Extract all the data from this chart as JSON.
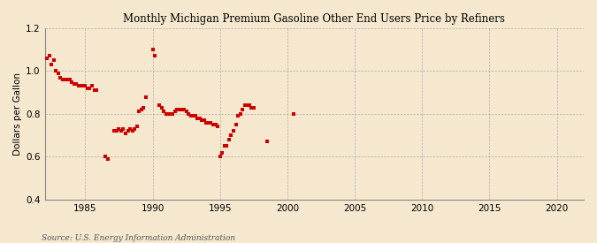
{
  "title": "Monthly Michigan Premium Gasoline Other End Users Price by Refiners",
  "ylabel": "Dollars per Gallon",
  "source": "Source: U.S. Energy Information Administration",
  "background_color": "#f5e8ce",
  "marker_color": "#cc0000",
  "xlim": [
    1982,
    2022
  ],
  "ylim": [
    0.4,
    1.2
  ],
  "xticks": [
    1985,
    1990,
    1995,
    2000,
    2005,
    2010,
    2015,
    2020
  ],
  "yticks": [
    0.4,
    0.6,
    0.8,
    1.0,
    1.2
  ],
  "data_x": [
    1982.17,
    1982.33,
    1982.5,
    1982.67,
    1982.83,
    1983.0,
    1983.17,
    1983.33,
    1983.5,
    1983.67,
    1983.83,
    1984.0,
    1984.17,
    1984.33,
    1984.5,
    1984.67,
    1984.83,
    1985.0,
    1985.17,
    1985.33,
    1985.5,
    1985.67,
    1985.83,
    1986.5,
    1986.67,
    1987.17,
    1987.33,
    1987.5,
    1987.67,
    1987.83,
    1988.0,
    1988.17,
    1988.33,
    1988.5,
    1988.67,
    1988.83,
    1989.0,
    1989.17,
    1989.33,
    1989.5,
    1990.0,
    1990.17,
    1990.5,
    1990.67,
    1990.83,
    1991.0,
    1991.17,
    1991.33,
    1991.5,
    1991.67,
    1991.83,
    1992.0,
    1992.17,
    1992.33,
    1992.5,
    1992.67,
    1992.83,
    1993.0,
    1993.17,
    1993.33,
    1993.5,
    1993.67,
    1993.83,
    1994.0,
    1994.17,
    1994.33,
    1994.5,
    1994.67,
    1994.83,
    1995.0,
    1995.17,
    1995.33,
    1995.5,
    1995.67,
    1995.83,
    1996.0,
    1996.17,
    1996.33,
    1996.5,
    1996.67,
    1996.83,
    1997.0,
    1997.17,
    1997.33,
    1997.5,
    1998.5,
    2000.5
  ],
  "data_y": [
    1.06,
    1.07,
    1.03,
    1.05,
    1.0,
    0.99,
    0.97,
    0.96,
    0.96,
    0.96,
    0.96,
    0.95,
    0.94,
    0.94,
    0.93,
    0.93,
    0.93,
    0.93,
    0.92,
    0.92,
    0.93,
    0.91,
    0.91,
    0.6,
    0.59,
    0.72,
    0.72,
    0.73,
    0.72,
    0.73,
    0.71,
    0.72,
    0.73,
    0.72,
    0.73,
    0.74,
    0.81,
    0.82,
    0.83,
    0.88,
    1.1,
    1.07,
    0.84,
    0.83,
    0.81,
    0.8,
    0.8,
    0.8,
    0.8,
    0.81,
    0.82,
    0.82,
    0.82,
    0.82,
    0.81,
    0.8,
    0.79,
    0.79,
    0.79,
    0.78,
    0.78,
    0.77,
    0.77,
    0.76,
    0.76,
    0.76,
    0.75,
    0.75,
    0.74,
    0.6,
    0.62,
    0.65,
    0.65,
    0.68,
    0.7,
    0.72,
    0.75,
    0.79,
    0.8,
    0.82,
    0.84,
    0.84,
    0.84,
    0.83,
    0.83,
    0.67,
    0.8
  ]
}
